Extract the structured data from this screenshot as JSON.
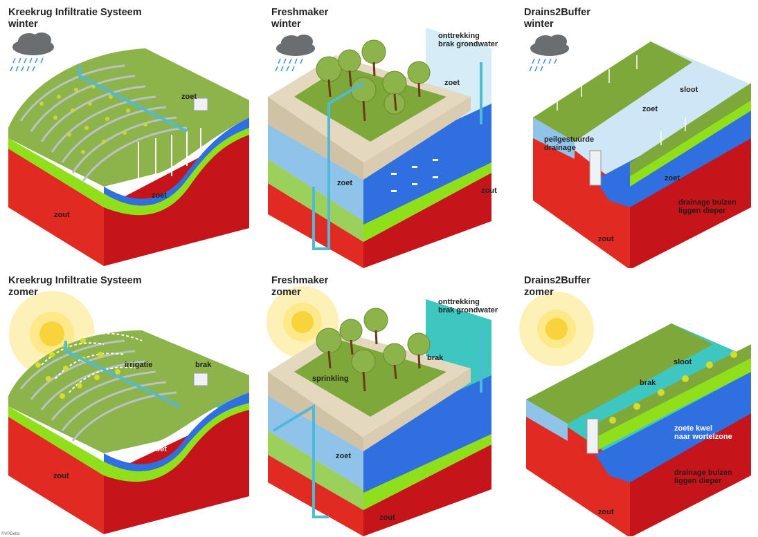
{
  "panels": [
    {
      "id": "kis-winter",
      "title_line1": "Kreekrug Infiltratie Systeem",
      "title_line2": "winter",
      "season": "winter",
      "labels": {
        "zoet_top": "zoet",
        "zoet_bottom": "zoet",
        "zout": "zout"
      }
    },
    {
      "id": "freshmaker-winter",
      "title_line1": "Freshmaker",
      "title_line2": "winter",
      "season": "winter",
      "labels": {
        "onttrekking_1": "onttrekking",
        "onttrekking_2": "brak grondwater",
        "zoet_top": "zoet",
        "zoet_mid": "zoet",
        "zout": "zout"
      }
    },
    {
      "id": "d2b-winter",
      "title_line1": "Drains2Buffer",
      "title_line2": "winter",
      "season": "winter",
      "labels": {
        "sloot": "sloot",
        "zoet_top": "zoet",
        "peil_1": "peilgestuurde",
        "peil_2": "drainage",
        "zoet_mid": "zoet",
        "drain_1": "drainage buizen",
        "drain_2": "liggen dieper",
        "zout": "zout"
      }
    },
    {
      "id": "kis-zomer",
      "title_line1": "Kreekrug Infiltratie Systeem",
      "title_line2": "zomer",
      "season": "zomer",
      "labels": {
        "brak": "brak",
        "irrigatie": "irrigatie",
        "zoet_bottom": "zoet",
        "zout": "zout"
      }
    },
    {
      "id": "freshmaker-zomer",
      "title_line1": "Freshmaker",
      "title_line2": "zomer",
      "season": "zomer",
      "labels": {
        "onttrekking_1": "onttrekking",
        "onttrekking_2": "brak grondwater",
        "brak": "brak",
        "sprinkling": "sprinkling",
        "zoet_mid": "zoet",
        "zout": "zout"
      }
    },
    {
      "id": "d2b-zomer",
      "title_line1": "Drains2Buffer",
      "title_line2": "zomer",
      "season": "zomer",
      "labels": {
        "sloot": "sloot",
        "brak": "brak",
        "kwel_1": "zoete kwel",
        "kwel_2": "naar wortelzone",
        "drain_1": "drainage buizen",
        "drain_2": "liggen dieper",
        "zout": "zout"
      }
    }
  ],
  "copyright": "©VPDelta",
  "colors": {
    "zout": "#d9141b",
    "zoet": "#2f6fe0",
    "zoet_light": "#8fc3ea",
    "brak": "#3ec6c0",
    "grass": "#7ea83a",
    "lime": "#8fe01a",
    "sand": "#e4d8bf",
    "sun": "#fde98a"
  }
}
